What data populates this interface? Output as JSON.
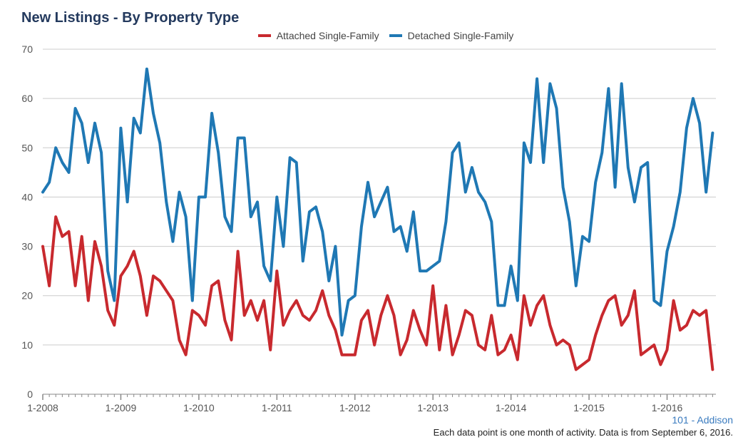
{
  "title": "New Listings - By Property Type",
  "footer": {
    "region": "101 - Addison",
    "note": "Each data point is one month of activity. Data is from September 6, 2016."
  },
  "colors": {
    "attached": "#c8292e",
    "detached": "#1f78b4",
    "grid": "#cccccc"
  },
  "chart_data": {
    "type": "line",
    "title": "New Listings - By Property Type",
    "xlabel": "",
    "ylabel": "",
    "ylim": [
      0,
      70
    ],
    "yticks": [
      0,
      10,
      20,
      30,
      40,
      50,
      60,
      70
    ],
    "xtick_labels": [
      "1-2008",
      "1-2009",
      "1-2010",
      "1-2011",
      "1-2012",
      "1-2013",
      "1-2014",
      "1-2015",
      "1-2016"
    ],
    "grid": true,
    "legend_position": "top",
    "x_start": "1-2008",
    "x_end": "8-2016",
    "series": [
      {
        "name": "Attached Single-Family",
        "color": "#c8292e",
        "values": [
          30,
          22,
          36,
          32,
          33,
          22,
          32,
          19,
          31,
          26,
          17,
          14,
          24,
          26,
          29,
          24,
          16,
          24,
          23,
          21,
          19,
          11,
          8,
          17,
          16,
          14,
          22,
          23,
          15,
          11,
          29,
          16,
          19,
          15,
          19,
          9,
          25,
          14,
          17,
          19,
          16,
          15,
          17,
          21,
          16,
          13,
          8,
          8,
          8,
          15,
          17,
          10,
          16,
          20,
          16,
          8,
          11,
          17,
          13,
          10,
          22,
          9,
          18,
          8,
          12,
          17,
          16,
          10,
          9,
          16,
          8,
          9,
          12,
          7,
          20,
          14,
          18,
          20,
          14,
          10,
          11,
          10,
          5,
          6,
          7,
          12,
          16,
          19,
          20,
          14,
          16,
          21,
          8,
          9,
          10,
          6,
          9,
          19,
          13,
          14,
          17,
          16,
          17,
          5
        ]
      },
      {
        "name": "Detached Single-Family",
        "color": "#1f78b4",
        "values": [
          41,
          43,
          50,
          47,
          45,
          58,
          55,
          47,
          55,
          49,
          25,
          19,
          54,
          39,
          56,
          53,
          66,
          57,
          51,
          39,
          31,
          41,
          36,
          19,
          40,
          40,
          57,
          49,
          36,
          33,
          52,
          52,
          36,
          39,
          26,
          23,
          40,
          30,
          48,
          47,
          27,
          37,
          38,
          33,
          23,
          30,
          12,
          19,
          20,
          34,
          43,
          36,
          39,
          42,
          33,
          34,
          29,
          37,
          25,
          25,
          26,
          27,
          35,
          49,
          51,
          41,
          46,
          41,
          39,
          35,
          18,
          18,
          26,
          19,
          51,
          47,
          64,
          47,
          63,
          58,
          42,
          35,
          22,
          32,
          31,
          43,
          49,
          62,
          42,
          63,
          46,
          39,
          46,
          47,
          19,
          18,
          29,
          34,
          41,
          54,
          60,
          55,
          41,
          53
        ]
      }
    ]
  }
}
